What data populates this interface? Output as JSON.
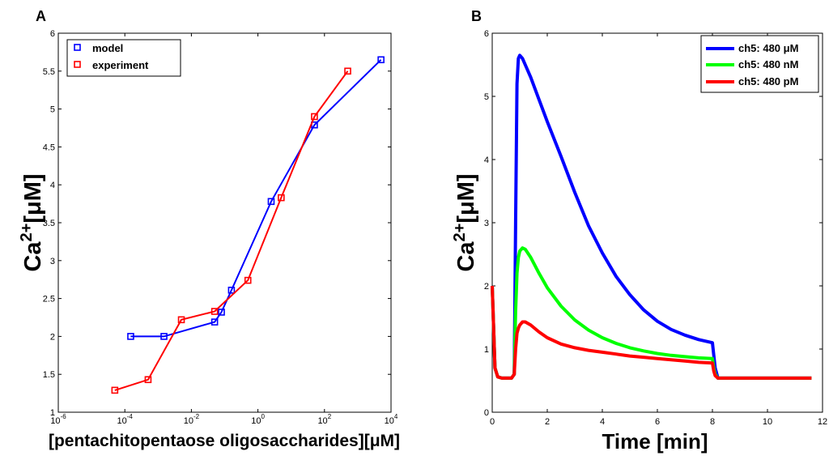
{
  "chart_data": [
    {
      "type": "line",
      "panel_label": "A",
      "xscale": "log",
      "xlim": [
        1e-06,
        10000
      ],
      "ylim": [
        1,
        6
      ],
      "xticks": [
        1e-06,
        0.0001,
        0.01,
        1,
        100,
        10000
      ],
      "xtick_labels": [
        {
          "base": "10",
          "exp": "-6"
        },
        {
          "base": "10",
          "exp": "-4"
        },
        {
          "base": "10",
          "exp": "-2"
        },
        {
          "base": "10",
          "exp": "0"
        },
        {
          "base": "10",
          "exp": "2"
        },
        {
          "base": "10",
          "exp": "4"
        }
      ],
      "yticks": [
        1,
        1.5,
        2,
        2.5,
        3,
        3.5,
        4,
        4.5,
        5,
        5.5,
        6
      ],
      "ytick_labels": [
        "1",
        "1.5",
        "2",
        "2.5",
        "3",
        "3.5",
        "4",
        "4.5",
        "5",
        "5.5",
        "6"
      ],
      "xlabel": "[pentachitopentaose oligosaccharides][μM]",
      "ylabel_main": "Ca",
      "ylabel_sup": "2+",
      "ylabel_tail": "[μM]",
      "legend_position": "top-left",
      "series": [
        {
          "name": "model",
          "color": "#0000ff",
          "marker": "square",
          "x": [
            0.00015,
            0.0015,
            0.05,
            0.08,
            0.16,
            2.5,
            50,
            5000
          ],
          "y": [
            2.0,
            2.0,
            2.19,
            2.32,
            2.61,
            3.78,
            4.79,
            5.65
          ]
        },
        {
          "name": "experiment",
          "color": "#ff0000",
          "marker": "square",
          "x": [
            5e-05,
            0.0005,
            0.005,
            0.05,
            0.5,
            5,
            50,
            500
          ],
          "y": [
            1.29,
            1.43,
            2.22,
            2.33,
            2.74,
            3.83,
            4.9,
            5.5
          ]
        }
      ]
    },
    {
      "type": "line",
      "panel_label": "B",
      "xlim": [
        0,
        12
      ],
      "ylim": [
        0,
        6
      ],
      "xticks": [
        0,
        2,
        4,
        6,
        8,
        10,
        12
      ],
      "xtick_labels": [
        "0",
        "2",
        "4",
        "6",
        "8",
        "10",
        "12"
      ],
      "yticks": [
        0,
        1,
        2,
        3,
        4,
        5,
        6
      ],
      "ytick_labels": [
        "0",
        "1",
        "2",
        "3",
        "4",
        "5",
        "6"
      ],
      "xlabel": "Time [min]",
      "ylabel_main": "Ca",
      "ylabel_sup": "2+",
      "ylabel_tail": "[μM]",
      "legend_position": "top-right",
      "series": [
        {
          "name": "ch5: 480 μM",
          "color": "#0000ff",
          "x": [
            0,
            0.1,
            0.2,
            0.35,
            0.5,
            0.7,
            0.8,
            0.85,
            0.9,
            0.95,
            1.0,
            1.1,
            1.2,
            1.4,
            1.7,
            2.0,
            2.5,
            3.0,
            3.5,
            4.0,
            4.5,
            5.0,
            5.5,
            6.0,
            6.5,
            7.0,
            7.5,
            8.0,
            8.05,
            8.1,
            8.2,
            8.5,
            9,
            10,
            11,
            11.6
          ],
          "y": [
            2.0,
            0.7,
            0.56,
            0.54,
            0.54,
            0.54,
            0.6,
            3.0,
            5.2,
            5.6,
            5.65,
            5.6,
            5.5,
            5.3,
            4.95,
            4.6,
            4.05,
            3.48,
            2.95,
            2.52,
            2.15,
            1.86,
            1.62,
            1.44,
            1.31,
            1.22,
            1.15,
            1.1,
            0.9,
            0.7,
            0.54,
            0.54,
            0.54,
            0.54,
            0.54,
            0.54
          ]
        },
        {
          "name": "ch5: 480 nM",
          "color": "#00ff00",
          "x": [
            0,
            0.1,
            0.2,
            0.35,
            0.5,
            0.7,
            0.8,
            0.85,
            0.9,
            0.95,
            1.0,
            1.1,
            1.2,
            1.4,
            1.7,
            2.0,
            2.5,
            3.0,
            3.5,
            4.0,
            4.5,
            5.0,
            5.5,
            6.0,
            6.5,
            7.0,
            7.5,
            8.0,
            8.05,
            8.1,
            8.2,
            8.5,
            9,
            10,
            11,
            11.6
          ],
          "y": [
            2.0,
            0.7,
            0.56,
            0.54,
            0.54,
            0.54,
            0.6,
            1.6,
            2.2,
            2.45,
            2.55,
            2.6,
            2.58,
            2.45,
            2.2,
            1.97,
            1.68,
            1.46,
            1.3,
            1.18,
            1.09,
            1.02,
            0.97,
            0.93,
            0.9,
            0.88,
            0.86,
            0.85,
            0.7,
            0.6,
            0.54,
            0.54,
            0.54,
            0.54,
            0.54,
            0.54
          ]
        },
        {
          "name": "ch5: 480 pM",
          "color": "#ff0000",
          "x": [
            0,
            0.1,
            0.2,
            0.35,
            0.5,
            0.7,
            0.8,
            0.85,
            0.9,
            0.95,
            1.0,
            1.1,
            1.2,
            1.4,
            1.7,
            2.0,
            2.5,
            3.0,
            3.5,
            4.0,
            4.5,
            5.0,
            5.5,
            6.0,
            6.5,
            7.0,
            7.5,
            8.0,
            8.05,
            8.1,
            8.2,
            8.5,
            9,
            10,
            11,
            11.6
          ],
          "y": [
            2.0,
            0.7,
            0.56,
            0.54,
            0.54,
            0.54,
            0.6,
            1.0,
            1.25,
            1.33,
            1.38,
            1.43,
            1.43,
            1.38,
            1.27,
            1.18,
            1.08,
            1.02,
            0.98,
            0.95,
            0.92,
            0.89,
            0.87,
            0.85,
            0.83,
            0.81,
            0.79,
            0.78,
            0.65,
            0.58,
            0.54,
            0.54,
            0.54,
            0.54,
            0.54,
            0.54
          ]
        }
      ]
    }
  ]
}
